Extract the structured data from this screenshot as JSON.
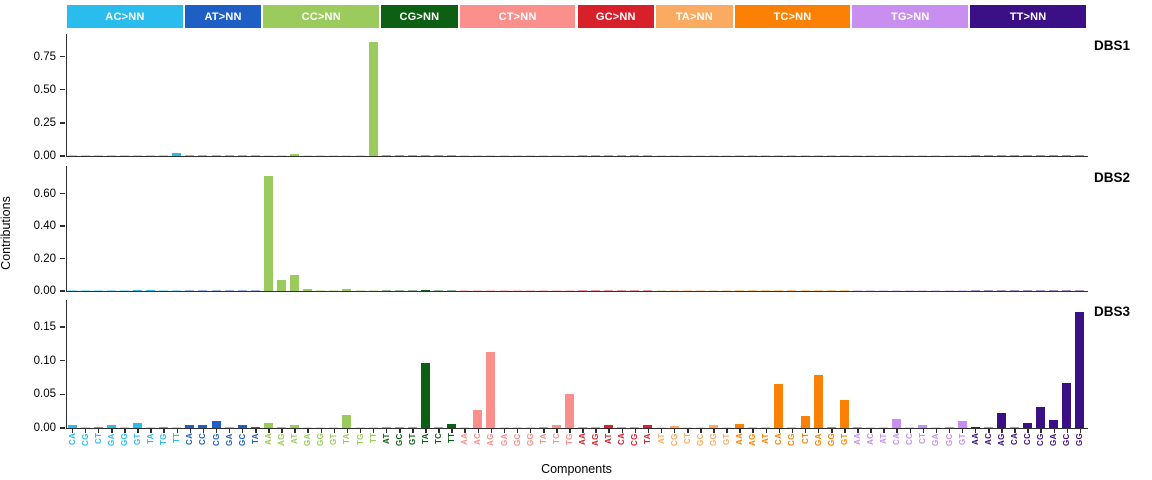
{
  "figure": {
    "x_axis_title": "Components",
    "y_axis_title": "Contributions",
    "axis_color": "#2f2f2f",
    "background": "#ffffff"
  },
  "chart_data": {
    "type": "bar",
    "title": "",
    "xlabel": "Components",
    "ylabel": "Contributions",
    "legend": "none",
    "grid": false,
    "facets_x": [
      {
        "label": "AC>NN",
        "color": "#29BCEC",
        "components": [
          "CA",
          "CG",
          "CT",
          "GA",
          "GG",
          "GT",
          "TA",
          "TG",
          "TT"
        ]
      },
      {
        "label": "AT>NN",
        "color": "#1E5FC5",
        "components": [
          "CA",
          "CC",
          "CG",
          "GA",
          "GC",
          "TA"
        ]
      },
      {
        "label": "CC>NN",
        "color": "#9CCB5D",
        "components": [
          "AA",
          "AG",
          "AT",
          "GA",
          "GG",
          "GT",
          "TA",
          "TG",
          "TT"
        ]
      },
      {
        "label": "CG>NN",
        "color": "#0D5F14",
        "components": [
          "AT",
          "GC",
          "GT",
          "TA",
          "TC",
          "TT"
        ]
      },
      {
        "label": "CT>NN",
        "color": "#FB8F8B",
        "components": [
          "AA",
          "AC",
          "AG",
          "GA",
          "GC",
          "GG",
          "TA",
          "TC",
          "TG"
        ]
      },
      {
        "label": "GC>NN",
        "color": "#D8202B",
        "components": [
          "AA",
          "AG",
          "AT",
          "CA",
          "CG",
          "TA"
        ]
      },
      {
        "label": "TA>NN",
        "color": "#FBAA62",
        "components": [
          "AT",
          "CG",
          "CT",
          "GC",
          "GG",
          "GT"
        ]
      },
      {
        "label": "TC>NN",
        "color": "#FB8105",
        "components": [
          "AA",
          "AG",
          "AT",
          "CA",
          "CG",
          "CT",
          "GA",
          "GG",
          "GT"
        ]
      },
      {
        "label": "TG>NN",
        "color": "#C88FF0",
        "components": [
          "AA",
          "AC",
          "AT",
          "CA",
          "CC",
          "CT",
          "GA",
          "GC",
          "GT"
        ]
      },
      {
        "label": "TT>NN",
        "color": "#3B0F85",
        "components": [
          "AA",
          "AC",
          "AG",
          "CA",
          "CC",
          "CG",
          "GA",
          "GC",
          "GG"
        ]
      }
    ],
    "facets_y": [
      {
        "label": "DBS1",
        "ytick_labels": [
          "0.00",
          "0.25",
          "0.50",
          "0.75"
        ],
        "ytick_values": [
          0,
          0.25,
          0.5,
          0.75
        ],
        "ymax": 0.92,
        "values": {
          "AC>NN": [
            0.001,
            0.001,
            0.001,
            0.001,
            0.001,
            0.001,
            0.001,
            0.001,
            0.02
          ],
          "AT>NN": [
            0.001,
            0.001,
            0.001,
            0.001,
            0.001,
            0.001
          ],
          "CC>NN": [
            0.001,
            0.001,
            0.012,
            0.001,
            0.001,
            0.001,
            0.001,
            0.001,
            0.86
          ],
          "CG>NN": [
            0.001,
            0.001,
            0.001,
            0.001,
            0.001,
            0.001
          ],
          "CT>NN": [
            0.001,
            0.001,
            0.001,
            0.001,
            0.001,
            0.001,
            0.001,
            0.001,
            0.001
          ],
          "GC>NN": [
            0.001,
            0.001,
            0.001,
            0.001,
            0.001,
            0.001
          ],
          "TA>NN": [
            0.001,
            0.001,
            0.001,
            0.001,
            0.001,
            0.001
          ],
          "TC>NN": [
            0.001,
            0.001,
            0.001,
            0.001,
            0.001,
            0.001,
            0.001,
            0.001,
            0.001
          ],
          "TG>NN": [
            0.001,
            0.001,
            0.001,
            0.001,
            0.001,
            0.001,
            0.001,
            0.001,
            0.001
          ],
          "TT>NN": [
            0.001,
            0.001,
            0.001,
            0.001,
            0.001,
            0.001,
            0.001,
            0.001,
            0.001
          ]
        }
      },
      {
        "label": "DBS2",
        "ytick_labels": [
          "0.00",
          "0.20",
          "0.40",
          "0.60"
        ],
        "ytick_values": [
          0,
          0.2,
          0.4,
          0.6
        ],
        "ymax": 0.77,
        "values": {
          "AC>NN": [
            0.001,
            0.001,
            0.001,
            0.001,
            0.001,
            0.002,
            0.002,
            0.001,
            0.001
          ],
          "AT>NN": [
            0.001,
            0.001,
            0.001,
            0.001,
            0.001,
            0.001
          ],
          "CC>NN": [
            0.71,
            0.067,
            0.098,
            0.013,
            0.001,
            0.001,
            0.01,
            0.001,
            0.001
          ],
          "CG>NN": [
            0.001,
            0.001,
            0.001,
            0.004,
            0.001,
            0.001
          ],
          "CT>NN": [
            0.001,
            0.001,
            0.001,
            0.001,
            0.001,
            0.001,
            0.001,
            0.001,
            0.001
          ],
          "GC>NN": [
            0.001,
            0.001,
            0.001,
            0.001,
            0.001,
            0.001
          ],
          "TA>NN": [
            0.001,
            0.001,
            0.001,
            0.001,
            0.001,
            0.001
          ],
          "TC>NN": [
            0.001,
            0.001,
            0.001,
            0.001,
            0.001,
            0.001,
            0.001,
            0.001,
            0.001
          ],
          "TG>NN": [
            0.001,
            0.001,
            0.001,
            0.001,
            0.001,
            0.001,
            0.001,
            0.001,
            0.001
          ],
          "TT>NN": [
            0.001,
            0.001,
            0.001,
            0.001,
            0.001,
            0.001,
            0.001,
            0.001,
            0.001
          ]
        }
      },
      {
        "label": "DBS3",
        "ytick_labels": [
          "0.00",
          "0.05",
          "0.10",
          "0.15"
        ],
        "ytick_values": [
          0,
          0.05,
          0.1,
          0.15
        ],
        "ymax": 0.19,
        "values": {
          "AC>NN": [
            0.004,
            0.001,
            0.002,
            0.004,
            0.001,
            0.008,
            0.001,
            0.002,
            0.001
          ],
          "AT>NN": [
            0.005,
            0.005,
            0.011,
            0.001,
            0.004,
            0.002
          ],
          "CC>NN": [
            0.008,
            0.002,
            0.004,
            0.001,
            0.001,
            0.001,
            0.019,
            0.001,
            0.001
          ],
          "CG>NN": [
            0.001,
            0.001,
            0.001,
            0.097,
            0.001,
            0.006
          ],
          "CT>NN": [
            0.001,
            0.027,
            0.113,
            0.001,
            0.001,
            0.001,
            0.002,
            0.005,
            0.051
          ],
          "GC>NN": [
            0.001,
            0.001,
            0.004,
            0.001,
            0.001,
            0.005
          ],
          "TA>NN": [
            0.001,
            0.003,
            0.001,
            0.001,
            0.005,
            0.001
          ],
          "TC>NN": [
            0.006,
            0.001,
            0.001,
            0.066,
            0.001,
            0.018,
            0.078,
            0.002,
            0.042
          ],
          "TG>NN": [
            0.002,
            0.001,
            0.001,
            0.014,
            0.001,
            0.005,
            0.001,
            0.002,
            0.01
          ],
          "TT>NN": [
            0.002,
            0.001,
            0.022,
            0.001,
            0.007,
            0.031,
            0.012,
            0.067,
            0.172
          ]
        }
      }
    ]
  }
}
